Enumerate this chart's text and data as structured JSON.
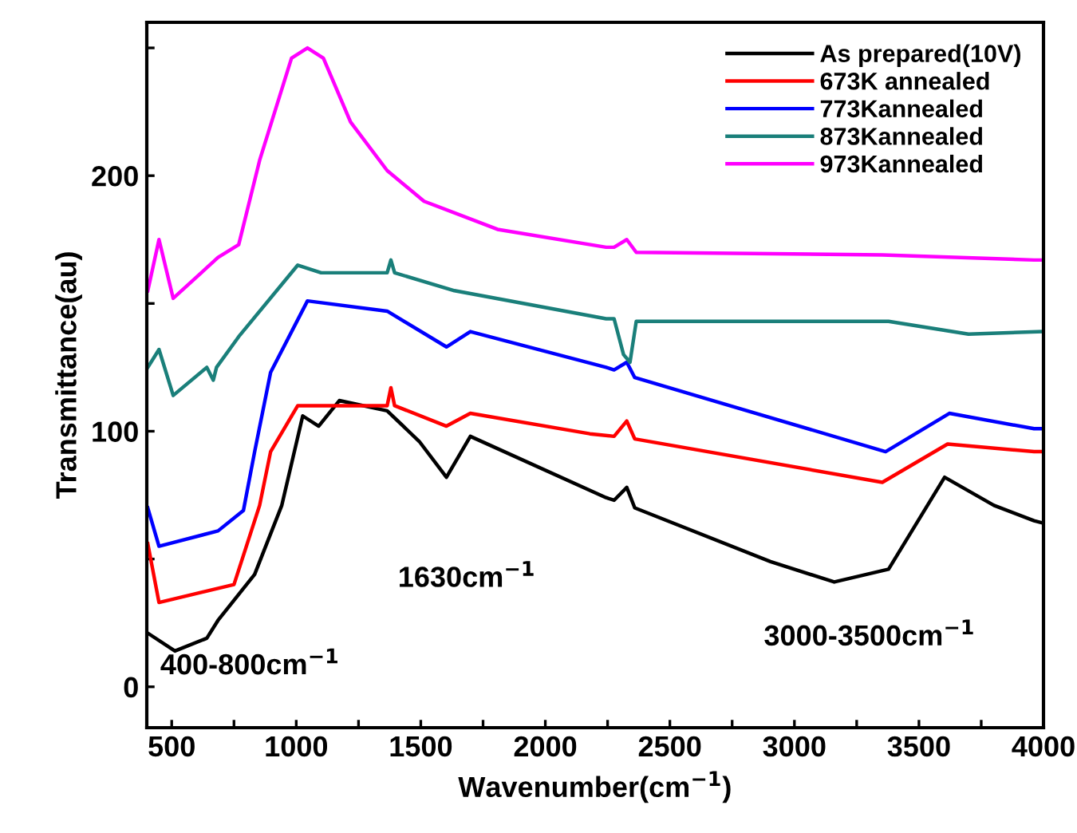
{
  "chart_data": {
    "type": "line",
    "xlabel": "Wavenumber(cm$^{−1}$)",
    "ylabel": "Transmittance(au)",
    "xlim": [
      400,
      4000
    ],
    "ylim": [
      -16,
      260
    ],
    "xticks": [
      500,
      {
        "value": 750,
        "label": null
      },
      1000,
      {
        "value": 1250,
        "label": null
      },
      1500,
      {
        "value": 1750,
        "label": null
      },
      2000,
      {
        "value": 2250,
        "label": null
      },
      2500,
      {
        "value": 2750,
        "label": null
      },
      3000,
      {
        "value": 3250,
        "label": null
      },
      3500,
      {
        "value": 3750,
        "label": null
      },
      4000
    ],
    "yticks": [
      0,
      {
        "value": 50,
        "label": null
      },
      100,
      {
        "value": 150,
        "label": null
      },
      200,
      {
        "value": 250,
        "label": null
      }
    ],
    "grid": false,
    "legend": "top right",
    "marker": "none",
    "line_style": "solid",
    "annotations": [
      "400-800cm$^{−1}$",
      "1630cm$^{−1}$",
      "3000-3500cm$^{−1}$"
    ],
    "series": [
      {
        "name": "As prepared(10V)",
        "color": "#000000",
        "x": [
          404,
          513,
          641,
          686,
          833,
          942,
          1026,
          1090,
          1173,
          1365,
          1494,
          1603,
          1699,
          2244,
          2276,
          2327,
          2359,
          2904,
          3160,
          3378,
          3603,
          3801,
          3962,
          4000
        ],
        "values": [
          21,
          14,
          19,
          26,
          44,
          71,
          106,
          102,
          112,
          108,
          96,
          82,
          98,
          74,
          73,
          78,
          70,
          49,
          41,
          46,
          82,
          71,
          65,
          64
        ]
      },
      {
        "name": "673K annealed",
        "color": "#ff0000",
        "x": [
          404,
          449,
          750,
          853,
          897,
          1006,
          1365,
          1380,
          1395,
          1603,
          1699,
          2179,
          2276,
          2327,
          2359,
          3353,
          3615,
          3962,
          4000
        ],
        "values": [
          56,
          33,
          40,
          71,
          92,
          110,
          110,
          117,
          110,
          102,
          107,
          99,
          98,
          104,
          97,
          80,
          95,
          92,
          92
        ]
      },
      {
        "name": "773Kannealed",
        "color": "#0000ff",
        "x": [
          404,
          449,
          686,
          788,
          833,
          897,
          1045,
          1365,
          1603,
          1699,
          2244,
          2276,
          2327,
          2359,
          3366,
          3622,
          3962,
          4000
        ],
        "values": [
          70,
          55,
          61,
          69,
          92,
          123,
          151,
          147,
          133,
          139,
          125,
          124,
          127,
          121,
          92,
          107,
          101,
          101
        ]
      },
      {
        "name": "873Kannealed",
        "color": "#1a7f7a",
        "x": [
          404,
          449,
          506,
          641,
          667,
          680,
          769,
          1006,
          1100,
          1365,
          1380,
          1395,
          1635,
          2244,
          2276,
          2314,
          2340,
          2365,
          3378,
          3699,
          4000
        ],
        "values": [
          125,
          132,
          114,
          125,
          120,
          125,
          137,
          165,
          162,
          162,
          167,
          162,
          155,
          144,
          144,
          130,
          127,
          143,
          143,
          138,
          139
        ]
      },
      {
        "name": "973Kannealed",
        "color": "#ff00ff",
        "x": [
          404,
          449,
          506,
          686,
          769,
          853,
          981,
          1045,
          1109,
          1218,
          1365,
          1513,
          1808,
          2244,
          2276,
          2327,
          2365,
          3353,
          3962,
          4000
        ],
        "values": [
          155,
          175,
          152,
          168,
          173,
          206,
          246,
          250,
          246,
          221,
          202,
          190,
          179,
          172,
          172,
          175,
          170,
          169,
          167,
          167
        ]
      }
    ]
  }
}
